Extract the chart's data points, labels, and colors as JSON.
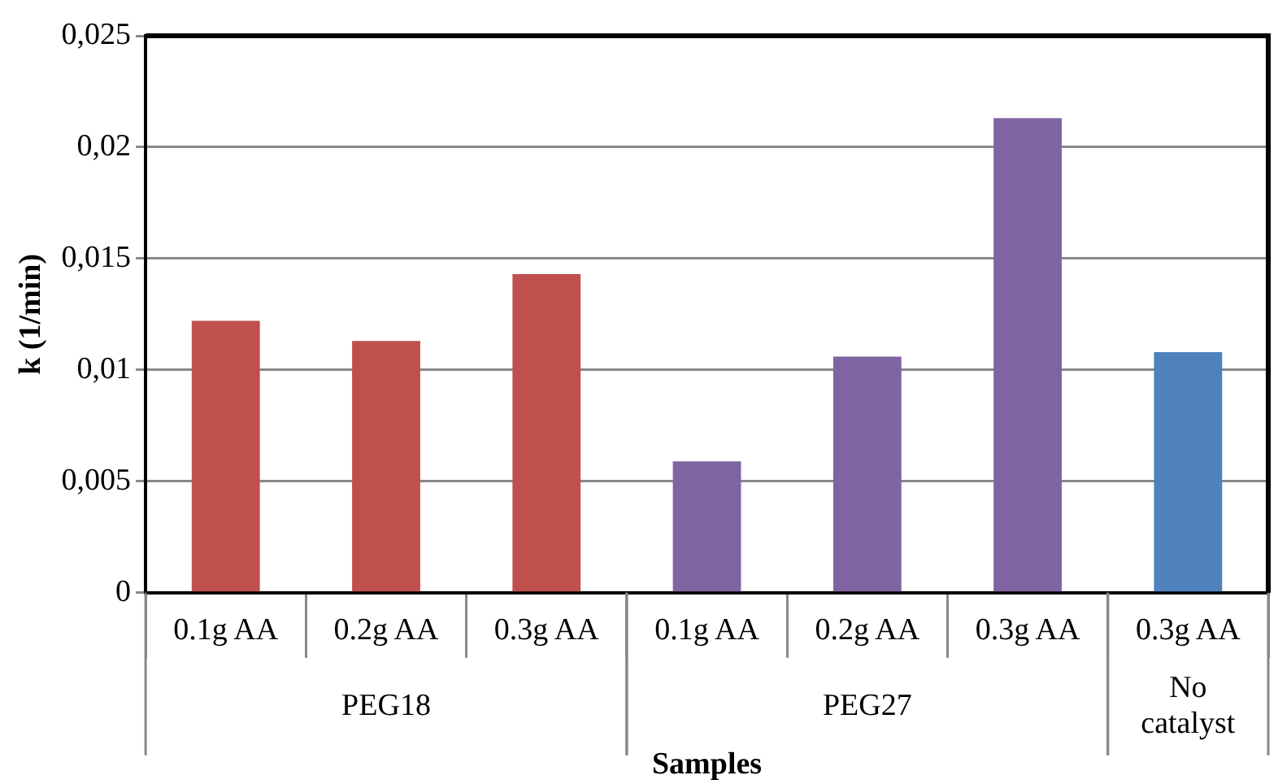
{
  "chart_data": {
    "type": "bar",
    "xlabel": "Samples",
    "ylabel": "k (1/min)",
    "annotations": [
      "PEG18",
      "PEG27",
      "No catalyst"
    ],
    "categories": [
      "0.1g AA",
      "0.2g AA",
      "0.3g AA",
      "0.1g AA",
      "0.2g AA",
      "0.3g AA",
      "0.3g AA"
    ],
    "series": [
      {
        "color": "#c0504d",
        "values": [
          0.0122,
          0.0113,
          0.0143,
          null,
          null,
          null,
          null
        ]
      },
      {
        "color": "#8064a2",
        "values": [
          null,
          null,
          null,
          0.0059,
          0.0106,
          0.0213,
          null
        ]
      },
      {
        "color": "#4f81bd",
        "values": [
          null,
          null,
          null,
          null,
          null,
          null,
          0.0108
        ]
      }
    ],
    "ylim": [
      0,
      0.025
    ],
    "yticks": [
      {
        "value": 0,
        "label": "0"
      },
      {
        "value": 0.005,
        "label": "0,005"
      },
      {
        "value": 0.01,
        "label": "0,01"
      },
      {
        "value": 0.015,
        "label": "0,015"
      },
      {
        "value": 0.02,
        "label": "0,02"
      },
      {
        "value": 0.025,
        "label": "0,025"
      }
    ],
    "grid": "y",
    "legend": false
  }
}
